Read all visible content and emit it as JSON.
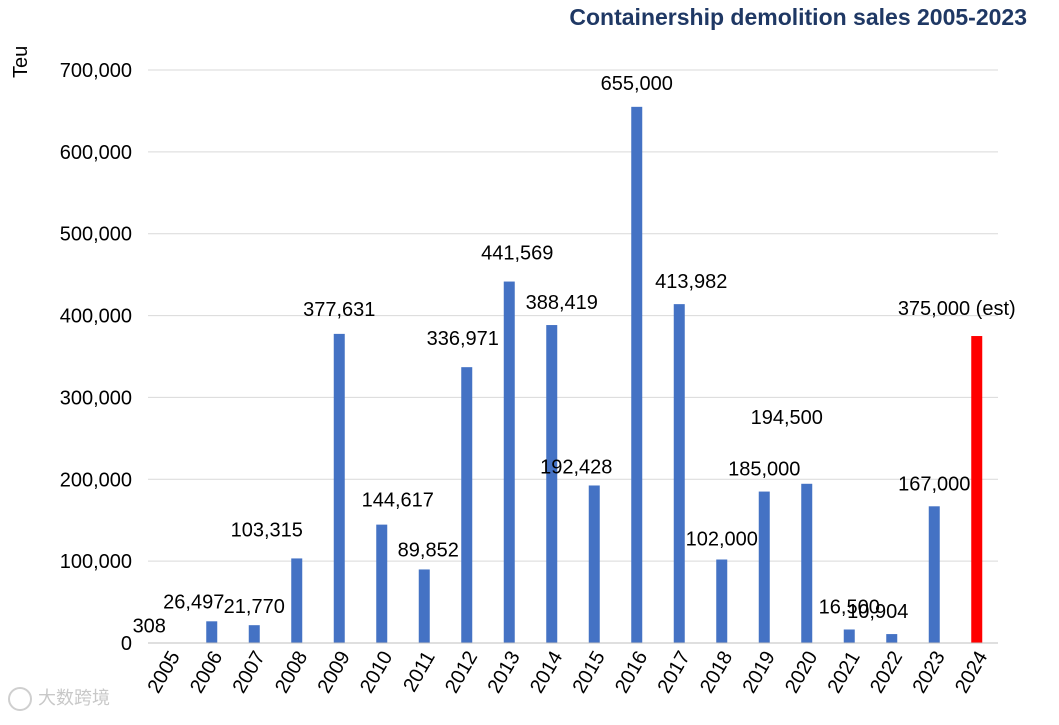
{
  "chart_data": {
    "type": "bar",
    "title": "Containership demolition sales 2005-2023",
    "ylabel": "Teu",
    "xlabel": "",
    "ylim": [
      0,
      700000
    ],
    "yticks": [
      0,
      100000,
      200000,
      300000,
      400000,
      500000,
      600000,
      700000
    ],
    "ytick_labels": [
      "0",
      "100,000",
      "200,000",
      "300,000",
      "400,000",
      "500,000",
      "600,000",
      "700,000"
    ],
    "grid": true,
    "categories": [
      "2005",
      "2006",
      "2007",
      "2008",
      "2009",
      "2010",
      "2011",
      "2012",
      "2013",
      "2014",
      "2015",
      "2016",
      "2017",
      "2018",
      "2019",
      "2020",
      "2021",
      "2022",
      "2023",
      "2024"
    ],
    "values": [
      308,
      26497,
      21770,
      103315,
      377631,
      144617,
      89852,
      336971,
      441569,
      388419,
      192428,
      655000,
      413982,
      102000,
      185000,
      194500,
      16500,
      10904,
      167000,
      375000
    ],
    "data_labels": [
      "308",
      "26,497",
      "21,770",
      "103,315",
      "377,631",
      "144,617",
      "89,852",
      "336,971",
      "441,569",
      "388,419",
      "192,428",
      "655,000",
      "413,982",
      "102,000",
      "185,000",
      "194,500",
      "16,500",
      "10,904",
      "167,000",
      "375,000 (est)"
    ],
    "colors": {
      "bar": "#4472c4",
      "estimate": "#ff0000",
      "grid": "#d9d9d9",
      "title": "#1f3864"
    },
    "highlight_index": 19
  },
  "watermark": {
    "text": "大数跨境",
    "icon": "logo-icon"
  }
}
